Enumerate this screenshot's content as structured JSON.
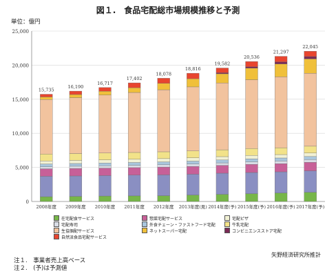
{
  "header": {
    "title": "図１.　食品宅配総市場規模推移と予測",
    "unit": "単位：億円"
  },
  "chart_data": {
    "type": "bar",
    "stacked": true,
    "title": "図１.　食品宅配総市場規模推移と予測",
    "ylabel": "単位：億円",
    "ylim": [
      0,
      25000
    ],
    "yticks": [
      "0",
      "5,000",
      "10,000",
      "15,000",
      "20,000",
      "25,000"
    ],
    "categories": [
      "2008年度",
      "2009年度",
      "2010年度",
      "2011年度",
      "2012年度",
      "2013年度(見)",
      "2014年度(予)",
      "2015年度(予)",
      "2016年度(予)",
      "2017年度(予)"
    ],
    "totals": [
      15735,
      16190,
      16717,
      17402,
      18078,
      18816,
      19582,
      20536,
      21297,
      22045
    ],
    "total_labels": [
      "15,735",
      "16,190",
      "16,717",
      "17,402",
      "18,078",
      "18,816",
      "19,582",
      "20,536",
      "21,297",
      "22,045"
    ],
    "grid": true,
    "legend_position": "bottom",
    "series": [
      {
        "name": "在宅配食サービス",
        "color": "#77b649",
        "values": [
          700,
          750,
          800,
          820,
          850,
          950,
          1050,
          1150,
          1250,
          1350
        ]
      },
      {
        "name": "自治体食品宅配サービス",
        "color": "#8a8fc2",
        "values": [
          3000,
          3000,
          3000,
          3050,
          3050,
          3050,
          3100,
          3100,
          3100,
          3150
        ]
      },
      {
        "name": "惣菜宅配サービス",
        "color": "#c76098",
        "values": [
          1100,
          1100,
          1100,
          1100,
          1150,
          1150,
          1150,
          1200,
          1200,
          1250
        ]
      },
      {
        "name": "宅配寿司",
        "color": "#d9dde6",
        "values": [
          300,
          320,
          330,
          340,
          340,
          350,
          360,
          370,
          380,
          390
        ]
      },
      {
        "name": "外食チェーン・ファストフード宅配",
        "color": "#a9c6dd",
        "values": [
          400,
          400,
          410,
          410,
          420,
          420,
          430,
          440,
          450,
          460
        ]
      },
      {
        "name": "宅配ピザ",
        "color": "#f1f1d4",
        "values": [
          450,
          460,
          470,
          470,
          480,
          490,
          490,
          500,
          500,
          510
        ]
      },
      {
        "name": "牛乳宅配",
        "color": "#f2e289",
        "values": [
          1000,
          1000,
          1000,
          1000,
          1000,
          1000,
          1000,
          1000,
          1000,
          1000
        ]
      },
      {
        "name": "生協個配サービス",
        "color": "#f2c39e",
        "values": [
          8000,
          8200,
          8500,
          8800,
          9100,
          9400,
          9800,
          10100,
          10400,
          10700
        ]
      },
      {
        "name": "ネットスーパー宅配",
        "color": "#f0c03a",
        "values": [
          385,
          460,
          560,
          700,
          950,
          1200,
          1350,
          1700,
          1900,
          2100
        ]
      },
      {
        "name": "コンビニエンスストア宅配",
        "color": "#7a2a55",
        "values": [
          0,
          0,
          0,
          0,
          0,
          0,
          150,
          200,
          300,
          350
        ]
      },
      {
        "name": "自然派食品宅配サービス",
        "color": "#e8452f",
        "values": [
          400,
          500,
          547,
          712,
          738,
          806,
          702,
          776,
          817,
          785
        ]
      }
    ]
  },
  "legend_rows": [
    [
      {
        "name": "在宅配食サービス",
        "color": "#77b649"
      },
      {
        "name": "惣菜宅配サービス",
        "color": "#c76098"
      },
      {
        "name": "宅配ピザ",
        "color": "#f1f1d4"
      }
    ],
    [
      {
        "name": "宅配寿司",
        "color": "#d9dde6"
      },
      {
        "name": "外食チェーン・ファストフード宅配",
        "color": "#a9c6dd"
      },
      {
        "name": "牛乳宅配",
        "color": "#f2e289"
      }
    ],
    [
      {
        "name": "生協個配サービス",
        "color": "#f2c39e"
      },
      {
        "name": "ネットスーパー宅配",
        "color": "#f0c03a"
      },
      {
        "name": "コンビニエンスストア宅配",
        "color": "#7a2a55"
      }
    ],
    [
      {
        "name": "自然派食品宅配サービス",
        "color": "#e8452f"
      }
    ]
  ],
  "source": "矢野経済研究所推計",
  "notes": [
    "注１.　事業者売上高ベース",
    "注２.　(予)は予測値"
  ]
}
